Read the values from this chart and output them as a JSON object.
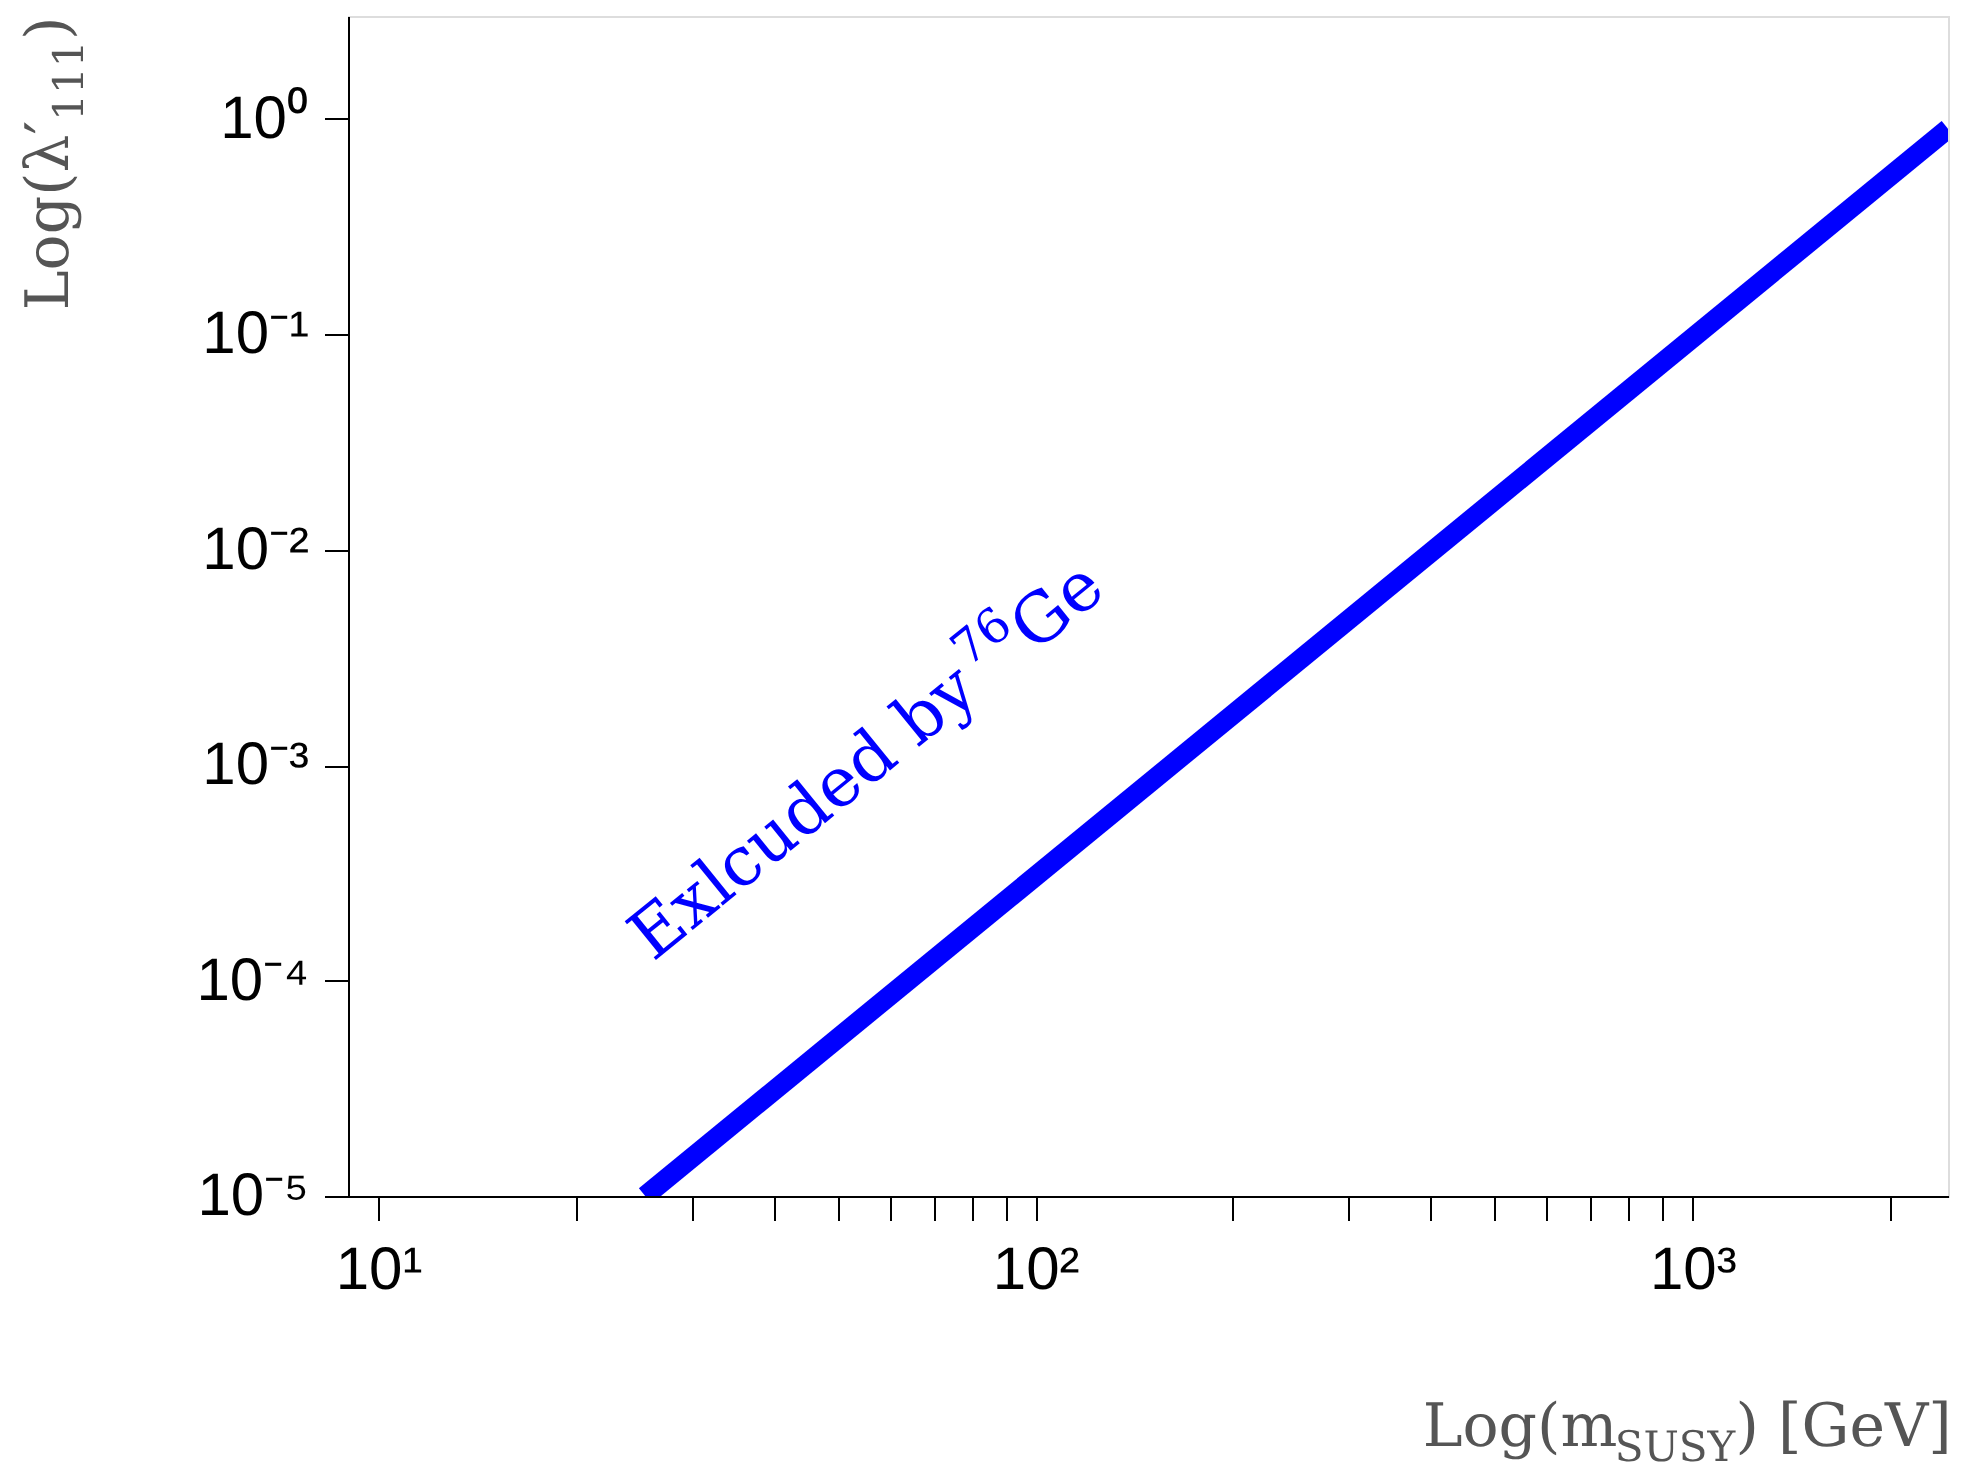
{
  "chart_data": {
    "type": "line",
    "xlabel": "Log(m$_{SUSY}$) [GeV]",
    "ylabel": "Log(λ′$_{111}$)",
    "log": "xy",
    "x": [
      25.5,
      2450
    ],
    "series": [
      {
        "color": "#0000ff",
        "values": [
          1e-05,
          0.9
        ]
      }
    ],
    "xlim": [
      9,
      2450
    ],
    "ylim": [
      1e-05,
      3
    ],
    "xticks": [
      {
        "value": 10,
        "label": "10¹"
      },
      {
        "value": 20,
        "label": null
      },
      {
        "value": 30,
        "label": null
      },
      {
        "value": 40,
        "label": null
      },
      {
        "value": 50,
        "label": null
      },
      {
        "value": 60,
        "label": null
      },
      {
        "value": 70,
        "label": null
      },
      {
        "value": 80,
        "label": null
      },
      {
        "value": 90,
        "label": null
      },
      {
        "value": 100,
        "label": "10²"
      },
      {
        "value": 200,
        "label": null
      },
      {
        "value": 300,
        "label": null
      },
      {
        "value": 400,
        "label": null
      },
      {
        "value": 500,
        "label": null
      },
      {
        "value": 600,
        "label": null
      },
      {
        "value": 700,
        "label": null
      },
      {
        "value": 800,
        "label": null
      },
      {
        "value": 900,
        "label": null
      },
      {
        "value": 1000,
        "label": "10³"
      },
      {
        "value": 2000,
        "label": null
      }
    ],
    "yticks": [
      {
        "value": 1e-05,
        "label": "10⁻⁵"
      },
      {
        "value": 0.0001,
        "label": "10⁻⁴"
      },
      {
        "value": 0.001,
        "label": "10⁻³"
      },
      {
        "value": 0.01,
        "label": "10⁻²"
      },
      {
        "value": 0.1,
        "label": "10⁻¹"
      },
      {
        "value": 1,
        "label": "10⁰"
      }
    ],
    "annotations": [
      "Exlcuded by $^{76}$Ge"
    ],
    "grid": false,
    "line_style": "solid",
    "marker": "none"
  }
}
